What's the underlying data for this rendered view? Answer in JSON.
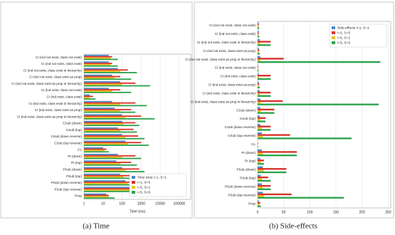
{
  "chart_data": [
    {
      "type": "barh",
      "caption": "(a) Time",
      "xlabel": "Time (ms)",
      "xscale": "log",
      "xlim": [
        1,
        400000
      ],
      "xticks": [
        1,
        10,
        100,
        1000,
        10000,
        100000
      ],
      "grid": true,
      "legend": "lower right",
      "categories": [
        "CI (ind not exist, class not exist)",
        "CI (ind not exist, class exist)",
        "CI (ind not exist, class exist in hierarchy)",
        "CI (ind not exist, class exist as prop)",
        "CI (ind not exist, class exist as prop in hierarchy)",
        "CI (ind exist, class not exist)",
        "CI (ind exist, class exist)",
        "CI (ind exist, class exist in hierarchy)",
        "CI (ind exist, class exist as prop)",
        "CI (ind exist, class exist as prop in hierarchy)",
        "CSub (down)",
        "CSub (top)",
        "CSub (down reverse)",
        "CSub (top reverse)",
        "CL",
        "PI (down)",
        "PI (top)",
        "PSub (down)",
        "PSub (top)",
        "PSub (down reverse)",
        "PSub (top reverse)",
        "Prop"
      ],
      "series": [
        {
          "name": "Time (ms) I=1, S=1",
          "color": "#4a86c8",
          "values": [
            20,
            20,
            60,
            30,
            80,
            20,
            2,
            30,
            40,
            100,
            100,
            60,
            100,
            150,
            10,
            60,
            50,
            100,
            80,
            150,
            300,
            15
          ]
        },
        {
          "name": "I=1, S=5",
          "color": "#d9342b",
          "values": [
            30,
            30,
            200,
            80,
            500,
            80,
            3,
            500,
            300,
            1000,
            500,
            400,
            700,
            1000,
            15,
            500,
            300,
            800,
            600,
            1000,
            2000,
            20
          ]
        },
        {
          "name": "I=5, S=1",
          "color": "#f0c020",
          "values": [
            25,
            25,
            80,
            40,
            100,
            30,
            2,
            80,
            80,
            150,
            120,
            80,
            150,
            200,
            12,
            100,
            80,
            150,
            120,
            200,
            500,
            20
          ]
        },
        {
          "name": "I=5, S=5",
          "color": "#2ea44f",
          "values": [
            60,
            60,
            600,
            300,
            3000,
            300,
            4,
            2000,
            500,
            5000,
            800,
            600,
            1500,
            2500,
            20,
            1000,
            600,
            1500,
            1200,
            8000,
            30000,
            40
          ]
        }
      ]
    },
    {
      "type": "barh",
      "caption": "(b) Side-effects",
      "xscale": "linear",
      "xlim": [
        0,
        255
      ],
      "xticks": [
        0,
        50,
        100,
        150,
        200,
        250
      ],
      "grid": true,
      "legend": "upper right",
      "categories": [
        "CI (ind not exist, class not exist)",
        "CI (ind not exist, class exist)",
        "CI (ind not exist, class exist in hierarchy)",
        "CI (ind not exist, class exist as prop)",
        "CI (ind not exist, class exist as prop in hierarchy)",
        "CI (ind exist, class not exist)",
        "CI (ind exist, class exist)",
        "CI (ind exist, class exist as prop)",
        "CI (ind exist, class exist in hierarchy)",
        "CI (ind exist, class exist as prop in hierarchy)",
        "CSub (down)",
        "CSub (top)",
        "CSub (down reverse)",
        "CSub (top reverse)",
        "CL",
        "PI (down)",
        "PI (top)",
        "PSub (down)",
        "PSub (top)",
        "PSub (down reverse)",
        "PSub (top reverse)",
        "Prop"
      ],
      "series": [
        {
          "name": "Side-effects I=1, S=1",
          "color": "#4a86c8",
          "values": [
            2,
            2,
            4,
            2,
            5,
            1,
            2,
            2,
            4,
            5,
            5,
            4,
            5,
            8,
            0,
            8,
            5,
            10,
            6,
            8,
            10,
            2
          ]
        },
        {
          "name": "I=1, S=5",
          "color": "#d9342b",
          "values": [
            2,
            2,
            25,
            3,
            50,
            1,
            25,
            3,
            25,
            48,
            32,
            15,
            25,
            62,
            1,
            75,
            12,
            55,
            20,
            25,
            65,
            5
          ]
        },
        {
          "name": "I=5, S=1",
          "color": "#f0c020",
          "values": [
            2,
            2,
            5,
            2,
            5,
            1,
            3,
            2,
            5,
            6,
            6,
            5,
            8,
            10,
            0,
            10,
            6,
            12,
            8,
            10,
            12,
            3
          ]
        },
        {
          "name": "I=5, S=5",
          "color": "#2ea44f",
          "values": [
            3,
            3,
            25,
            4,
            235,
            2,
            25,
            4,
            25,
            232,
            32,
            15,
            25,
            180,
            1,
            75,
            12,
            55,
            25,
            25,
            165,
            6
          ]
        }
      ]
    }
  ]
}
